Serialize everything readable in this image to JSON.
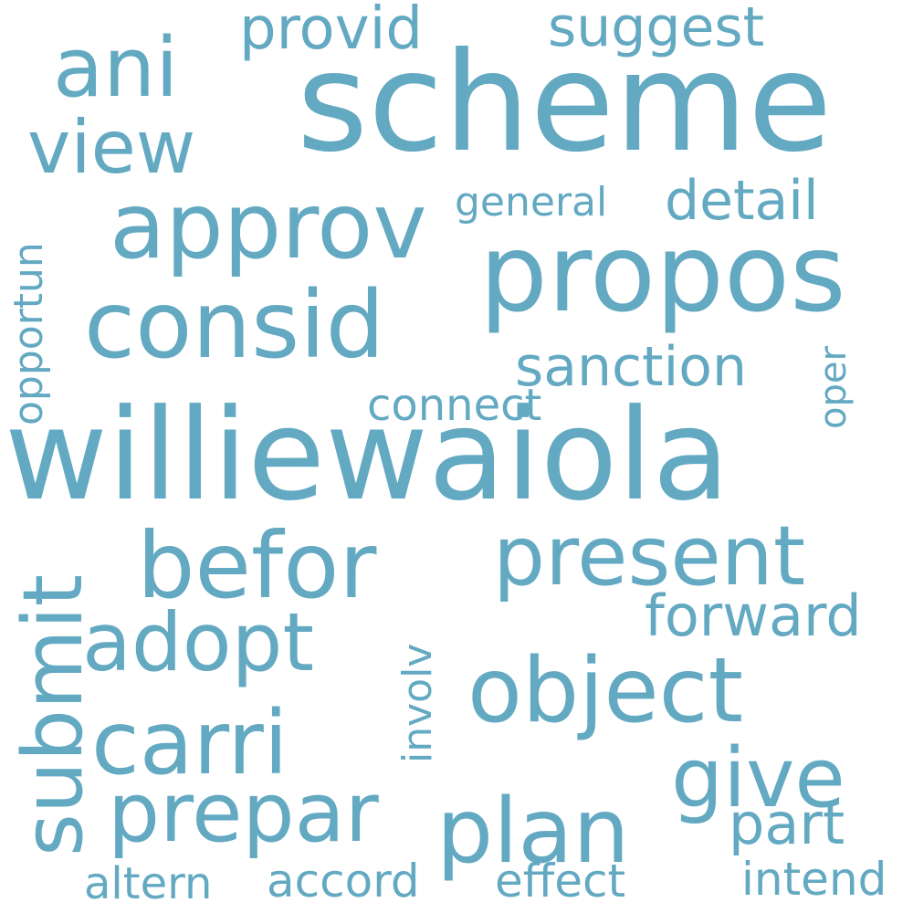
{
  "theme": {
    "word_color": "#63a9c2",
    "background": "#ffffff"
  },
  "words": {
    "scheme": "scheme",
    "williewaiola": "williewaiola",
    "propos": "propos",
    "approv": "approv",
    "consid": "consid",
    "befor": "befor",
    "present": "present",
    "object": "object",
    "ani": "ani",
    "view": "view",
    "adopt": "adopt",
    "carri": "carri",
    "prepar": "prepar",
    "plan": "plan",
    "give": "give",
    "submit": "submit",
    "provid": "provid",
    "suggest": "suggest",
    "detail": "detail",
    "general": "general",
    "sanction": "sanction",
    "connect": "connect",
    "oper": "oper",
    "opportun": "opportun",
    "forward": "forward",
    "involv": "involv",
    "part": "part",
    "altern": "altern",
    "accord": "accord",
    "effect": "effect",
    "intend": "intend"
  }
}
